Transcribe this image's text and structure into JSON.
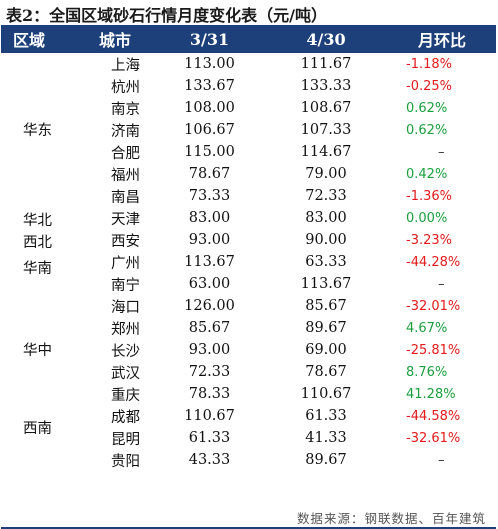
{
  "title": "表2：全国区域砂石行情月度变化表（元/吨）",
  "headers": {
    "region": "区域",
    "city": "城市",
    "col1": "3/31",
    "col2": "4/30",
    "change": "月环比"
  },
  "regions": [
    "华东",
    "华北",
    "西北",
    "华南",
    "华中",
    "西南"
  ],
  "rows": [
    {
      "city": "上海",
      "v1": "113.00",
      "v2": "111.67",
      "chg": "-1.18%"
    },
    {
      "city": "杭州",
      "v1": "133.67",
      "v2": "133.33",
      "chg": "-0.25%"
    },
    {
      "city": "南京",
      "v1": "108.00",
      "v2": "108.67",
      "chg": "0.62%"
    },
    {
      "city": "济南",
      "v1": "106.67",
      "v2": "107.33",
      "chg": "0.62%"
    },
    {
      "city": "合肥",
      "v1": "115.00",
      "v2": "114.67",
      "chg": "–"
    },
    {
      "city": "福州",
      "v1": "78.67",
      "v2": "79.00",
      "chg": "0.42%"
    },
    {
      "city": "南昌",
      "v1": "73.33",
      "v2": "72.33",
      "chg": "-1.36%"
    },
    {
      "city": "天津",
      "v1": "83.00",
      "v2": "83.00",
      "chg": "0.00%"
    },
    {
      "city": "西安",
      "v1": "93.00",
      "v2": "90.00",
      "chg": "-3.23%"
    },
    {
      "city": "广州",
      "v1": "113.67",
      "v2": "63.33",
      "chg": "-44.28%"
    },
    {
      "city": "南宁",
      "v1": "63.00",
      "v2": "113.67",
      "chg": "–"
    },
    {
      "city": "海口",
      "v1": "126.00",
      "v2": "85.67",
      "chg": "-32.01%"
    },
    {
      "city": "郑州",
      "v1": "85.67",
      "v2": "89.67",
      "chg": "4.67%"
    },
    {
      "city": "长沙",
      "v1": "93.00",
      "v2": "69.00",
      "chg": "-25.81%"
    },
    {
      "city": "武汉",
      "v1": "72.33",
      "v2": "78.67",
      "chg": "8.76%"
    },
    {
      "city": "重庆",
      "v1": "78.33",
      "v2": "110.67",
      "chg": "41.28%"
    },
    {
      "city": "成都",
      "v1": "110.67",
      "v2": "61.33",
      "chg": "-44.58%"
    },
    {
      "city": "昆明",
      "v1": "61.33",
      "v2": "41.33",
      "chg": "-32.61%"
    },
    {
      "city": "贵阳",
      "v1": "43.33",
      "v2": "89.67",
      "chg": "–"
    }
  ],
  "change_colors": {
    "negative_red": "#e41a1c",
    "positive_green": "#1b9e3e"
  },
  "header_bg": "#1d3f7a",
  "footer": "数据来源：钢联数据、百年建筑"
}
